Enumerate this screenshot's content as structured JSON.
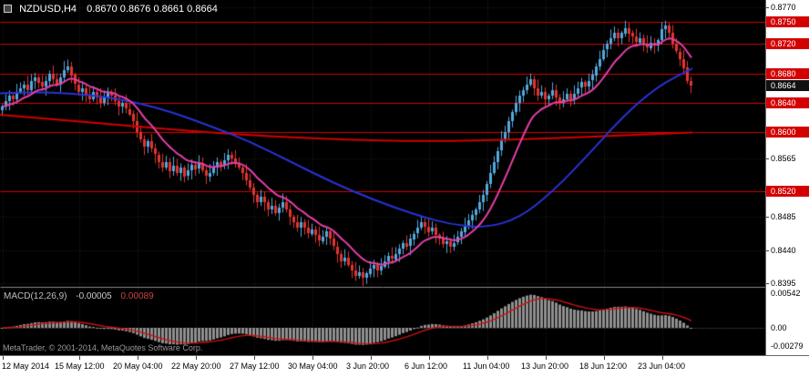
{
  "window": {
    "title_symbol": "NZDUSD,H4",
    "title_ohlc": "0.8670 0.8676 0.8661 0.8664"
  },
  "footer": {
    "copyright": "MetaTrader, © 2001-2014, MetaQuotes Software Corp."
  },
  "macd_panel": {
    "label": "MACD(12,26,9)",
    "value_main": "-0.00005",
    "value_signal": "0.00089",
    "axis_labels": [
      "0.00542",
      "0.00",
      "-0.00279"
    ]
  },
  "colors": {
    "chart_bg": "#000000",
    "axis_bg": "#ffffff",
    "axis_text": "#000000",
    "title_text": "#ffffff",
    "bull": "#54a9de",
    "bear": "#e23531",
    "level_line": "#d40000",
    "badge_level": "#d40000",
    "badge_current": "#111111",
    "ma_fast": "#e43fa9",
    "ma_mid": "#2734d4",
    "ma_slow": "#d40000",
    "histogram": "#8f8f8f",
    "macd_signal": "#cc1111",
    "grid": "#242424",
    "pane_separator": "#8a8a8a",
    "macd_label_text": "#bfbfbf",
    "footer_text": "#9a9a9a"
  },
  "chart_data": {
    "type": "candlestick",
    "symbol": "NZDUSD",
    "timeframe": "H4",
    "title": "NZDUSD,H4",
    "ohlc_display": {
      "open": 0.867,
      "high": 0.8676,
      "low": 0.8661,
      "close": 0.8664
    },
    "price_range_visible": [
      0.839,
      0.878
    ],
    "axis_ticks": [
      0.877,
      0.875,
      0.872,
      0.868,
      0.864,
      0.86,
      0.8565,
      0.852,
      0.8485,
      0.844,
      0.8395
    ],
    "level_lines": [
      0.875,
      0.872,
      0.868,
      0.864,
      0.86,
      0.852
    ],
    "current_price": 0.8664,
    "first_open_pips": 8630,
    "closes_pips": [
      8635,
      8642,
      8650,
      8645,
      8655,
      8660,
      8665,
      8658,
      8670,
      8675,
      8668,
      8662,
      8670,
      8680,
      8672,
      8665,
      8675,
      8685,
      8690,
      8678,
      8665,
      8655,
      8660,
      8650,
      8645,
      8655,
      8648,
      8640,
      8648,
      8655,
      8650,
      8642,
      8635,
      8640,
      8632,
      8625,
      8615,
      8600,
      8590,
      8580,
      8588,
      8578,
      8570,
      8560,
      8552,
      8560,
      8548,
      8555,
      8545,
      8552,
      8540,
      8548,
      8556,
      8550,
      8558,
      8548,
      8540,
      8545,
      8552,
      8560,
      8555,
      8562,
      8570,
      8565,
      8558,
      8552,
      8545,
      8535,
      8525,
      8515,
      8505,
      8512,
      8505,
      8495,
      8500,
      8490,
      8498,
      8505,
      8495,
      8485,
      8478,
      8470,
      8478,
      8470,
      8462,
      8468,
      8460,
      8452,
      8458,
      8465,
      8455,
      8445,
      8435,
      8425,
      8430,
      8420,
      8412,
      8405,
      8410,
      8402,
      8408,
      8415,
      8420,
      8412,
      8418,
      8425,
      8432,
      8428,
      8435,
      8442,
      8450,
      8445,
      8455,
      8462,
      8470,
      8478,
      8472,
      8465,
      8470,
      8460,
      8455,
      8448,
      8452,
      8445,
      8450,
      8458,
      8465,
      8472,
      8480,
      8488,
      8495,
      8505,
      8515,
      8530,
      8545,
      8560,
      8575,
      8590,
      8600,
      8615,
      8628,
      8640,
      8650,
      8658,
      8665,
      8672,
      8660,
      8650,
      8655,
      8645,
      8650,
      8658,
      8648,
      8640,
      8645,
      8652,
      8645,
      8652,
      8660,
      8668,
      8662,
      8670,
      8678,
      8690,
      8700,
      8712,
      8720,
      8728,
      8735,
      8728,
      8735,
      8742,
      8735,
      8730,
      8722,
      8728,
      8720,
      8715,
      8722,
      8718,
      8725,
      8740,
      8745,
      8735,
      8720,
      8710,
      8700,
      8688,
      8670,
      8664
    ],
    "wick_model": {
      "base": 3,
      "mult": 7,
      "range": 10
    },
    "time_labels": [
      {
        "text": "12 May 2014",
        "index": 0
      },
      {
        "text": "15 May 12:00",
        "index": 21
      },
      {
        "text": "20 May 04:00",
        "index": 37
      },
      {
        "text": "22 May 20:00",
        "index": 53
      },
      {
        "text": "27 May 12:00",
        "index": 69
      },
      {
        "text": "30 May 04:00",
        "index": 85
      },
      {
        "text": "3 Jun 20:00",
        "index": 101
      },
      {
        "text": "6 Jun 12:00",
        "index": 117
      },
      {
        "text": "11 Jun 04:00",
        "index": 133
      },
      {
        "text": "13 Jun 20:00",
        "index": 149
      },
      {
        "text": "18 Jun 12:00",
        "index": 165
      },
      {
        "text": "23 Jun 04:00",
        "index": 181
      }
    ],
    "ma_fast": {
      "period": 12
    },
    "ma_mid_anchors": [
      [
        0.0,
        0.8653
      ],
      [
        0.05,
        0.8655
      ],
      [
        0.1,
        0.8653
      ],
      [
        0.15,
        0.8649
      ],
      [
        0.2,
        0.864
      ],
      [
        0.25,
        0.8627
      ],
      [
        0.3,
        0.861
      ],
      [
        0.36,
        0.8588
      ],
      [
        0.42,
        0.856
      ],
      [
        0.48,
        0.8532
      ],
      [
        0.54,
        0.8508
      ],
      [
        0.6,
        0.8488
      ],
      [
        0.65,
        0.8475
      ],
      [
        0.7,
        0.847
      ],
      [
        0.75,
        0.8483
      ],
      [
        0.8,
        0.8521
      ],
      [
        0.85,
        0.857
      ],
      [
        0.9,
        0.8622
      ],
      [
        0.95,
        0.8663
      ],
      [
        1.0,
        0.8687
      ]
    ],
    "ma_slow_anchors": [
      [
        0.0,
        0.8624
      ],
      [
        0.1,
        0.8616
      ],
      [
        0.2,
        0.8608
      ],
      [
        0.3,
        0.86
      ],
      [
        0.4,
        0.8594
      ],
      [
        0.5,
        0.859
      ],
      [
        0.6,
        0.8588
      ],
      [
        0.7,
        0.8589
      ],
      [
        0.8,
        0.8592
      ],
      [
        0.9,
        0.8596
      ],
      [
        1.0,
        0.86
      ]
    ],
    "macd": {
      "fast": 12,
      "slow": 26,
      "signal": 9,
      "axis_ticks": [
        0.00542,
        0,
        -0.00279
      ],
      "last_main": -5e-05,
      "last_signal": 0.00089
    }
  }
}
